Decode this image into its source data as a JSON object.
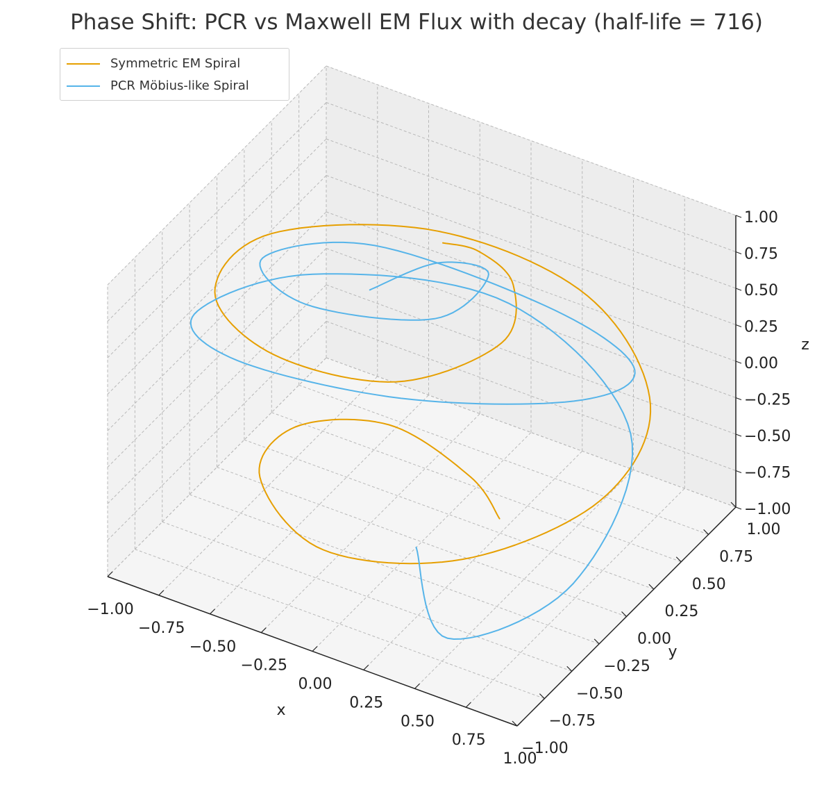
{
  "chart_data": {
    "type": "line3d",
    "title": "Phase Shift: PCR vs Maxwell EM Flux with decay (half-life = 716)",
    "xlabel": "x",
    "ylabel": "y",
    "zlabel": "z",
    "xlim": [
      -1.0,
      1.0
    ],
    "ylim": [
      -1.0,
      1.0
    ],
    "zlim": [
      -1.0,
      1.0
    ],
    "x_ticks": [
      "−1.00",
      "−0.75",
      "−0.50",
      "−0.25",
      "0.00",
      "0.25",
      "0.50",
      "0.75",
      "1.00"
    ],
    "y_ticks": [
      "−1.00",
      "−0.75",
      "−0.50",
      "−0.25",
      "0.00",
      "0.25",
      "0.50",
      "0.75",
      "1.00"
    ],
    "z_ticks": [
      "−1.00",
      "−0.75",
      "−0.50",
      "−0.25",
      "0.00",
      "0.25",
      "0.50",
      "0.75",
      "1.00"
    ],
    "grid": true,
    "legend_position": "top-left",
    "series": [
      {
        "name": "Symmetric EM Spiral",
        "color": "#E69F00",
        "curve": "spherical spiral from z = -0.8 to z = 1.0, about 6 turns, radius sqrt(1 - z^2)",
        "points": [
          [
            0.3,
            0.15,
            -0.8
          ],
          [
            0.05,
            0.35,
            -0.79
          ],
          [
            -0.4,
            0.45,
            -0.74
          ],
          [
            -0.67,
            0.1,
            -0.63
          ],
          [
            -0.55,
            -0.45,
            -0.5
          ],
          [
            0.0,
            -0.9,
            -0.38
          ],
          [
            0.6,
            -0.75,
            -0.25
          ],
          [
            0.95,
            -0.15,
            -0.12
          ],
          [
            0.85,
            0.5,
            0.0
          ],
          [
            0.3,
            0.95,
            0.13
          ],
          [
            -0.4,
            0.9,
            0.25
          ],
          [
            -0.92,
            0.35,
            0.38
          ],
          [
            -0.85,
            -0.3,
            0.5
          ],
          [
            -0.35,
            -0.7,
            0.63
          ],
          [
            0.25,
            -0.7,
            0.75
          ],
          [
            0.55,
            -0.3,
            0.87
          ],
          [
            0.42,
            0.05,
            0.94
          ],
          [
            0.2,
            0.15,
            0.98
          ],
          [
            0.05,
            0.1,
            1.0
          ]
        ]
      },
      {
        "name": "PCR Möbius-like Spiral",
        "color": "#56B4E9",
        "curve": "spherical spiral with twisting, self-crossing loops, from z = -1.0 to z = 0.95",
        "points": [
          [
            0.0,
            -0.05,
            -1.0
          ],
          [
            0.5,
            -0.7,
            -0.88
          ],
          [
            0.9,
            -0.3,
            -0.6
          ],
          [
            0.7,
            0.6,
            -0.35
          ],
          [
            -0.1,
            0.98,
            -0.15
          ],
          [
            -0.8,
            0.5,
            0.05
          ],
          [
            -0.95,
            -0.3,
            0.3
          ],
          [
            -0.5,
            -0.75,
            0.55
          ],
          [
            0.3,
            -0.75,
            0.7
          ],
          [
            0.85,
            -0.2,
            0.55
          ],
          [
            0.8,
            0.45,
            0.25
          ],
          [
            0.2,
            0.85,
            0.05
          ],
          [
            -0.55,
            0.6,
            0.3
          ],
          [
            -0.75,
            -0.05,
            0.6
          ],
          [
            -0.3,
            -0.5,
            0.85
          ],
          [
            0.25,
            -0.35,
            0.92
          ],
          [
            0.3,
            0.05,
            0.95
          ],
          [
            0.0,
            0.15,
            0.8
          ],
          [
            -0.2,
            -0.1,
            0.7
          ]
        ]
      }
    ]
  }
}
